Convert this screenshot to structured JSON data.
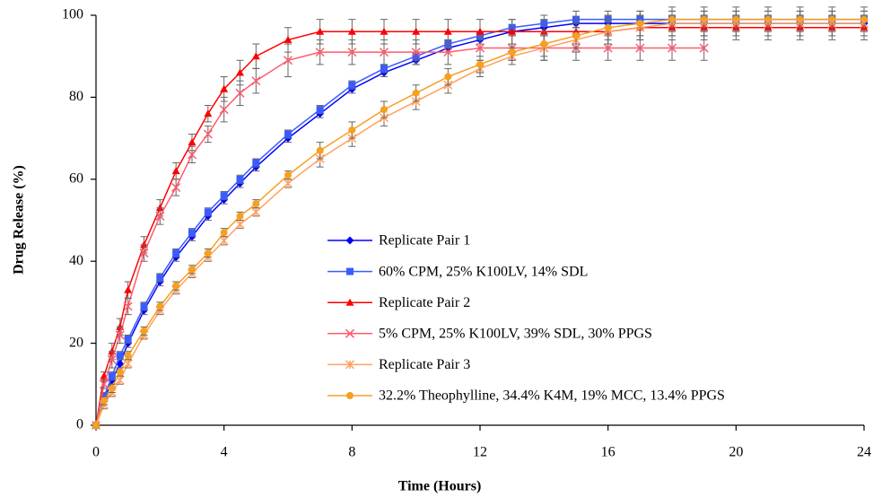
{
  "chart_data": {
    "type": "line",
    "x_label": "Time (Hours)",
    "y_label": "Drug Release (%)",
    "x": [
      0,
      0.25,
      0.5,
      0.75,
      1,
      1.5,
      2,
      2.5,
      3,
      3.5,
      4,
      4.5,
      5,
      6,
      7,
      8,
      9,
      10,
      11,
      12,
      13,
      14,
      15,
      16,
      17,
      18,
      19,
      20,
      21,
      22,
      23,
      24
    ],
    "xlim": [
      0,
      24
    ],
    "xticks": [
      0,
      4,
      8,
      12,
      16,
      20,
      24
    ],
    "ylim": [
      0,
      100
    ],
    "yticks": [
      0,
      20,
      40,
      60,
      80,
      100
    ],
    "series": [
      {
        "name": "Replicate Pair 1",
        "color": "#0000ff",
        "marker": "diamond",
        "values": [
          0,
          6,
          11,
          15,
          20,
          28,
          35,
          41,
          46,
          51,
          55,
          59,
          63,
          70,
          76,
          82,
          86,
          89,
          92,
          94,
          96,
          97,
          98,
          98,
          98,
          98,
          98,
          98,
          98,
          98,
          98,
          98
        ],
        "errors": [
          0,
          1,
          1,
          1,
          1,
          1,
          1,
          1,
          1,
          1,
          1,
          1,
          1,
          1,
          1,
          1,
          1,
          1,
          1,
          1,
          1,
          1,
          1,
          1,
          1,
          1,
          1,
          1,
          1,
          1,
          1,
          1
        ]
      },
      {
        "name": "60% CPM, 25% K100LV, 14% SDL",
        "color": "#3a5cff",
        "marker": "square",
        "values": [
          0,
          7,
          12,
          17,
          21,
          29,
          36,
          42,
          47,
          52,
          56,
          60,
          64,
          71,
          77,
          83,
          87,
          90,
          93,
          95,
          97,
          98,
          99,
          99,
          99,
          99,
          99,
          99,
          99,
          99,
          99,
          99
        ],
        "errors": [
          0,
          1,
          1,
          1,
          1,
          1,
          1,
          1,
          1,
          1,
          1,
          1,
          1,
          1,
          1,
          1,
          1,
          1,
          1,
          1,
          2,
          2,
          2,
          2,
          2,
          2,
          2,
          2,
          2,
          2,
          2,
          2
        ]
      },
      {
        "name": "Replicate Pair 2",
        "color": "#ff0000",
        "marker": "triangle",
        "values": [
          0,
          12,
          18,
          24,
          33,
          44,
          53,
          62,
          69,
          76,
          82,
          86,
          90,
          94,
          96,
          96,
          96,
          96,
          96,
          96,
          96,
          96,
          96,
          96,
          97,
          97,
          97,
          97,
          97,
          97,
          97,
          97
        ],
        "errors": [
          0,
          1,
          2,
          2,
          2,
          2,
          2,
          2,
          2,
          2,
          3,
          3,
          3,
          3,
          3,
          3,
          3,
          3,
          3,
          3,
          3,
          3,
          3,
          3,
          3,
          3,
          3,
          3,
          3,
          3,
          3,
          3
        ]
      },
      {
        "name": "5% CPM, 25% K100LV, 39% SDL, 30% PPGS",
        "color": "#ff5a6e",
        "marker": "x",
        "values": [
          0,
          10,
          16,
          22,
          29,
          42,
          51,
          58,
          66,
          71,
          77,
          81,
          84,
          89,
          91,
          91,
          91,
          91,
          91,
          92,
          92,
          92,
          92,
          92,
          92,
          92,
          92,
          null,
          null,
          null,
          null,
          null
        ],
        "errors": [
          0,
          1,
          2,
          2,
          2,
          2,
          2,
          2,
          2,
          2,
          3,
          3,
          3,
          4,
          3,
          3,
          3,
          3,
          3,
          3,
          3,
          3,
          3,
          3,
          3,
          3,
          3,
          null,
          null,
          null,
          null,
          null
        ]
      },
      {
        "name": "Replicate Pair 3",
        "color": "#ffa060",
        "marker": "asterisk",
        "values": [
          0,
          5,
          8,
          11,
          15,
          22,
          28,
          33,
          37,
          41,
          45,
          49,
          52,
          59,
          65,
          70,
          75,
          79,
          83,
          87,
          90,
          92,
          94,
          96,
          97,
          98,
          98,
          98,
          98,
          98,
          98,
          98
        ],
        "errors": [
          0,
          1,
          1,
          1,
          1,
          1,
          1,
          1,
          1,
          1,
          1,
          1,
          1,
          1,
          2,
          2,
          2,
          2,
          2,
          2,
          2,
          3,
          3,
          3,
          3,
          3,
          3,
          3,
          3,
          3,
          3,
          3
        ]
      },
      {
        "name": "32.2% Theophylline, 34.4% K4M, 19% MCC, 13.4% PPGS",
        "color": "#f5a020",
        "marker": "circle",
        "values": [
          0,
          6,
          9,
          13,
          17,
          23,
          29,
          34,
          38,
          42,
          47,
          51,
          54,
          61,
          67,
          72,
          77,
          81,
          85,
          88,
          91,
          93,
          95,
          97,
          98,
          99,
          99,
          99,
          99,
          99,
          99,
          99
        ],
        "errors": [
          0,
          1,
          1,
          1,
          1,
          1,
          1,
          1,
          1,
          1,
          1,
          1,
          1,
          1,
          2,
          2,
          2,
          2,
          2,
          2,
          2,
          3,
          3,
          3,
          3,
          3,
          3,
          3,
          3,
          3,
          3,
          3
        ]
      }
    ]
  }
}
